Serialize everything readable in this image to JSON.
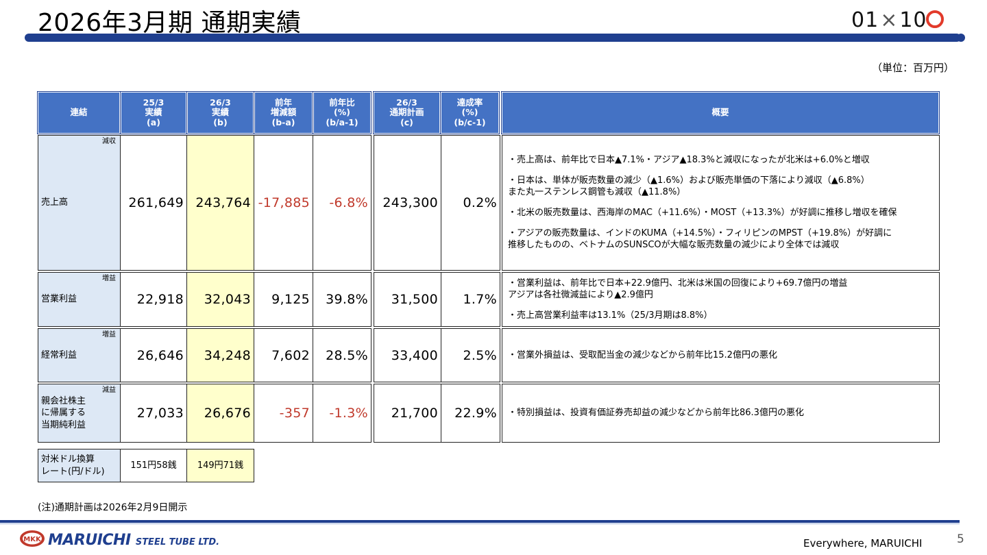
{
  "header": {
    "title": "2026年3月期 通期実績",
    "logo": {
      "left": "01",
      "times": "×",
      "right": "10"
    },
    "unit": "（単位：百万円）"
  },
  "table": {
    "headers": {
      "label": "連結",
      "a": "25/3\n実績\n(a)",
      "b": "26/3\n実績\n(b)",
      "diff": "前年\n増減額\n(b-a)",
      "ratio": "前年比\n(%)\n(b/a-1)",
      "plan": "26/3\n通期計画\n(c)",
      "achieve": "達成率\n(%)\n(b/c-1)",
      "summary": "概要"
    },
    "rows": [
      {
        "label": "売上高",
        "tag": "減収",
        "a": "261,649",
        "b": "243,764",
        "diff": "-17,885",
        "ratio": "-6.8%",
        "plan": "243,300",
        "achieve": "0.2%",
        "summary": [
          "・売上高は、前年比で日本▲7.1%・アジア▲18.3%と減収になったが北米は+6.0%と増収",
          "・日本は、単体が販売数量の減少（▲1.6%）および販売単価の下落により減収（▲6.8%）\n また丸一ステンレス鋼管も減収（▲11.8%）",
          "・北米の販売数量は、西海岸のMAC（+11.6%）・MOST（+13.3%）が好調に推移し増収を確保",
          "・アジアの販売数量は、インドのKUMA（+14.5%）・フィリピンのMPST（+19.8%）が好調に\n 推移したものの、ベトナムのSUNSCOが大幅な販売数量の減少により全体では減収"
        ]
      },
      {
        "label": "営業利益",
        "tag": "増益",
        "a": "22,918",
        "b": "32,043",
        "diff": "9,125",
        "ratio": "39.8%",
        "plan": "31,500",
        "achieve": "1.7%",
        "summary": [
          "・営業利益は、前年比で日本+22.9億円、北米は米国の回復により+69.7億円の増益\n アジアは各社微減益により▲2.9億円",
          "・売上高営業利益率は13.1%（25/3月期は8.8%）"
        ]
      },
      {
        "label": "経常利益",
        "tag": "増益",
        "a": "26,646",
        "b": "34,248",
        "diff": "7,602",
        "ratio": "28.5%",
        "plan": "33,400",
        "achieve": "2.5%",
        "summary": [
          "・営業外損益は、受取配当金の減少などから前年比15.2億円の悪化"
        ]
      },
      {
        "label": "親会社株主\nに帰属する\n当期純利益",
        "tag": "減益",
        "a": "27,033",
        "b": "26,676",
        "diff": "-357",
        "ratio": "-1.3%",
        "plan": "21,700",
        "achieve": "22.9%",
        "summary": [
          "・特別損益は、投資有価証券売却益の減少などから前年比86.3億円の悪化"
        ]
      }
    ],
    "fx": {
      "label": "対米ドル換算\nレート(円/ドル)",
      "a": "151円58銭",
      "b": "149円71銭"
    }
  },
  "note": "(注)通期計画は2026年2月9日開示",
  "footer": {
    "mark": "MKK",
    "brand": "MARUICHI",
    "brand_sub": "STEEL TUBE LTD.",
    "tagline": "Everywhere, MARUICHI",
    "page": "5"
  },
  "colors": {
    "header_blue": "#4472c4",
    "bar_navy": "#1f3f8f",
    "highlight_yellow": "#ffffcc",
    "negative_red": "#c0392b",
    "label_bg": "#dde8f5"
  }
}
